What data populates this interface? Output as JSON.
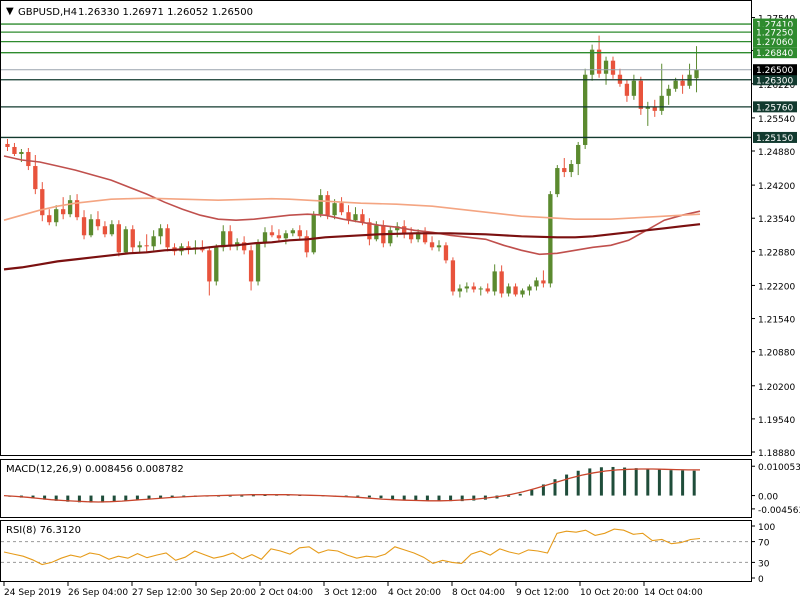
{
  "header": {
    "symbol": "GBPUSD,H4",
    "ohlc": "1.26330 1.26971 1.26052 1.26500"
  },
  "colors": {
    "bull": "#5b8a2f",
    "bear": "#e8533c",
    "ma_fast": "#c0504d",
    "ma_mid": "#f4a582",
    "ma_slow": "#7b1010",
    "green_level": "#2e8b2e",
    "dark_level": "#123a2f",
    "price_line": "#9aa3ad",
    "macd_hist": "#1f4d3a",
    "signal": "#c8452c",
    "rsi": "#e69b1a"
  },
  "chart_data": [
    {
      "type": "candlestick",
      "name": "GBPUSD,H4",
      "ylim": [
        1.1888,
        1.2781
      ],
      "y_ticks": [
        "1.27540",
        "1.26884",
        "1.26220",
        "1.25540",
        "1.24880",
        "1.24200",
        "1.23540",
        "1.22880",
        "1.22200",
        "1.21540",
        "1.20880",
        "1.20200",
        "1.19540",
        "1.18880"
      ],
      "x_ticks": [
        "24 Sep 2019",
        "26 Sep 04:00",
        "27 Sep 12:00",
        "30 Sep 20:00",
        "2 Oct 04:00",
        "3 Oct 12:00",
        "4 Oct 20:00",
        "8 Oct 04:00",
        "9 Oct 12:00",
        "10 Oct 20:00",
        "14 Oct 04:00"
      ],
      "levels_green": [
        "1.27410",
        "1.27250",
        "1.27060",
        "1.26840"
      ],
      "levels_dark": [
        "1.26300",
        "1.25760",
        "1.25150"
      ],
      "current_price": "1.26500",
      "candles": [
        [
          1.2502,
          1.2512,
          1.2488,
          1.2496
        ],
        [
          1.2496,
          1.2504,
          1.2478,
          1.2482
        ],
        [
          1.2482,
          1.2492,
          1.2466,
          1.2486
        ],
        [
          1.2486,
          1.2494,
          1.245,
          1.2458
        ],
        [
          1.2458,
          1.248,
          1.2402,
          1.2412
        ],
        [
          1.2412,
          1.2426,
          1.2348,
          1.236
        ],
        [
          1.236,
          1.2372,
          1.234,
          1.2346
        ],
        [
          1.2346,
          1.238,
          1.2338,
          1.2372
        ],
        [
          1.2372,
          1.2396,
          1.2352,
          1.2362
        ],
        [
          1.2362,
          1.24,
          1.2356,
          1.239
        ],
        [
          1.239,
          1.2402,
          1.235,
          1.2356
        ],
        [
          1.2356,
          1.237,
          1.2312,
          1.232
        ],
        [
          1.232,
          1.2362,
          1.2316,
          1.2352
        ],
        [
          1.2352,
          1.2368,
          1.233,
          1.2338
        ],
        [
          1.2338,
          1.2348,
          1.2316,
          1.2322
        ],
        [
          1.2322,
          1.235,
          1.2318,
          1.2342
        ],
        [
          1.2342,
          1.235,
          1.2278,
          1.2286
        ],
        [
          1.2286,
          1.2338,
          1.2282,
          1.2332
        ],
        [
          1.2332,
          1.234,
          1.2286,
          1.2296
        ],
        [
          1.2296,
          1.2308,
          1.2284,
          1.23
        ],
        [
          1.23,
          1.2322,
          1.2286,
          1.2298
        ],
        [
          1.2298,
          1.233,
          1.229,
          1.2318
        ],
        [
          1.2318,
          1.2342,
          1.2302,
          1.2334
        ],
        [
          1.2334,
          1.2342,
          1.2288,
          1.2296
        ],
        [
          1.2296,
          1.2304,
          1.228,
          1.2288
        ],
        [
          1.2288,
          1.2304,
          1.228,
          1.2298
        ],
        [
          1.2298,
          1.2308,
          1.2282,
          1.2292
        ],
        [
          1.2292,
          1.231,
          1.2282,
          1.2296
        ],
        [
          1.2296,
          1.231,
          1.2286,
          1.229
        ],
        [
          1.229,
          1.2298,
          1.22,
          1.2228
        ],
        [
          1.2228,
          1.2302,
          1.222,
          1.2296
        ],
        [
          1.2296,
          1.234,
          1.2288,
          1.2328
        ],
        [
          1.2328,
          1.234,
          1.229,
          1.2298
        ],
        [
          1.2298,
          1.2314,
          1.229,
          1.2306
        ],
        [
          1.2306,
          1.2318,
          1.2282,
          1.229
        ],
        [
          1.229,
          1.23,
          1.221,
          1.2228
        ],
        [
          1.2228,
          1.2312,
          1.222,
          1.2304
        ],
        [
          1.2304,
          1.2336,
          1.2296,
          1.2326
        ],
        [
          1.2326,
          1.234,
          1.2316,
          1.232
        ],
        [
          1.232,
          1.2332,
          1.2306,
          1.2314
        ],
        [
          1.2314,
          1.233,
          1.2302,
          1.2324
        ],
        [
          1.2324,
          1.2334,
          1.2318,
          1.233
        ],
        [
          1.233,
          1.234,
          1.2312,
          1.2318
        ],
        [
          1.2318,
          1.233,
          1.2276,
          1.2286
        ],
        [
          1.2286,
          1.2368,
          1.2282,
          1.2362
        ],
        [
          1.2362,
          1.2412,
          1.2356,
          1.24
        ],
        [
          1.24,
          1.2408,
          1.2352,
          1.236
        ],
        [
          1.236,
          1.2392,
          1.2352,
          1.2384
        ],
        [
          1.2384,
          1.2396,
          1.236,
          1.2366
        ],
        [
          1.2366,
          1.238,
          1.2342,
          1.235
        ],
        [
          1.235,
          1.2376,
          1.2346,
          1.2362
        ],
        [
          1.2362,
          1.2372,
          1.234,
          1.2346
        ],
        [
          1.2346,
          1.2354,
          1.23,
          1.2312
        ],
        [
          1.2312,
          1.2348,
          1.2308,
          1.234
        ],
        [
          1.234,
          1.235,
          1.2296,
          1.2304
        ],
        [
          1.2304,
          1.2338,
          1.2298,
          1.233
        ],
        [
          1.233,
          1.2346,
          1.2316,
          1.2338
        ],
        [
          1.2338,
          1.235,
          1.2314,
          1.2324
        ],
        [
          1.2324,
          1.2336,
          1.2304,
          1.2312
        ],
        [
          1.2312,
          1.2332,
          1.2306,
          1.2326
        ],
        [
          1.2326,
          1.2336,
          1.2302,
          1.2306
        ],
        [
          1.2306,
          1.2318,
          1.229,
          1.2296
        ],
        [
          1.2296,
          1.231,
          1.2288,
          1.23
        ],
        [
          1.23,
          1.2306,
          1.2264,
          1.227
        ],
        [
          1.227,
          1.2276,
          1.22,
          1.2208
        ],
        [
          1.2208,
          1.2222,
          1.2196,
          1.2214
        ],
        [
          1.2214,
          1.2226,
          1.2206,
          1.2218
        ],
        [
          1.2218,
          1.2226,
          1.2206,
          1.2212
        ],
        [
          1.2212,
          1.2218,
          1.22,
          1.2214
        ],
        [
          1.2214,
          1.2224,
          1.2204,
          1.2208
        ],
        [
          1.2208,
          1.2262,
          1.22,
          1.2248
        ],
        [
          1.2248,
          1.226,
          1.2196,
          1.2204
        ],
        [
          1.2204,
          1.2224,
          1.2198,
          1.2218
        ],
        [
          1.2218,
          1.2224,
          1.2198,
          1.2202
        ],
        [
          1.2202,
          1.2214,
          1.2196,
          1.221
        ],
        [
          1.221,
          1.2222,
          1.22,
          1.2218
        ],
        [
          1.2218,
          1.2236,
          1.221,
          1.223
        ],
        [
          1.223,
          1.225,
          1.2216,
          1.2224
        ],
        [
          1.2224,
          1.2408,
          1.2216,
          1.2402
        ],
        [
          1.2402,
          1.246,
          1.2396,
          1.2454
        ],
        [
          1.2454,
          1.2474,
          1.2436,
          1.2446
        ],
        [
          1.2446,
          1.247,
          1.2436,
          1.2462
        ],
        [
          1.2462,
          1.2506,
          1.244,
          1.25
        ],
        [
          1.25,
          1.2652,
          1.2492,
          1.264
        ],
        [
          1.264,
          1.27,
          1.2628,
          1.269
        ],
        [
          1.269,
          1.2718,
          1.2634,
          1.2642
        ],
        [
          1.2642,
          1.2676,
          1.262,
          1.2668
        ],
        [
          1.2668,
          1.2676,
          1.2632,
          1.264
        ],
        [
          1.264,
          1.2652,
          1.2616,
          1.2622
        ],
        [
          1.2622,
          1.263,
          1.2586,
          1.2598
        ],
        [
          1.2598,
          1.264,
          1.259,
          1.2628
        ],
        [
          1.2628,
          1.2636,
          1.256,
          1.2572
        ],
        [
          1.2572,
          1.2586,
          1.2538,
          1.2576
        ],
        [
          1.2576,
          1.259,
          1.2556,
          1.2568
        ],
        [
          1.2568,
          1.2662,
          1.256,
          1.2598
        ],
        [
          1.2598,
          1.262,
          1.258,
          1.2612
        ],
        [
          1.2612,
          1.2634,
          1.2606,
          1.2628
        ],
        [
          1.2628,
          1.264,
          1.2602,
          1.2618
        ],
        [
          1.2618,
          1.2662,
          1.2612,
          1.264
        ],
        [
          1.2633,
          1.2697,
          1.2605,
          1.265
        ]
      ],
      "moving_averages": [
        {
          "values": [
            1.2478,
            1.247,
            1.2466,
            1.2458,
            1.245,
            1.244,
            1.243,
            1.2416,
            1.2402,
            1.2386,
            1.2372,
            1.236,
            1.2352,
            1.235,
            1.2352,
            1.2356,
            1.236,
            1.2362,
            1.236,
            1.2352,
            1.2346,
            1.234,
            1.2336,
            1.233,
            1.2326,
            1.232,
            1.2316,
            1.2312,
            1.23,
            1.229,
            1.2282,
            1.2284,
            1.229,
            1.2296,
            1.23,
            1.231,
            1.233,
            1.235,
            1.236,
            1.2368
          ]
        },
        {
          "values": [
            1.235,
            1.236,
            1.237,
            1.2378,
            1.2384,
            1.2388,
            1.2392,
            1.2393,
            1.2394,
            1.2393,
            1.2392,
            1.2391,
            1.239,
            1.2391,
            1.2392,
            1.2393,
            1.2392,
            1.239,
            1.2388,
            1.2386,
            1.2384,
            1.2383,
            1.2382,
            1.238,
            1.2378,
            1.2374,
            1.237,
            1.2366,
            1.2362,
            1.2358,
            1.2356,
            1.2354,
            1.2352,
            1.2352,
            1.2352,
            1.2354,
            1.2356,
            1.2358,
            1.236,
            1.2362
          ]
        },
        {
          "values": [
            1.2252,
            1.2256,
            1.2262,
            1.2268,
            1.2272,
            1.2276,
            1.228,
            1.2284,
            1.2286,
            1.229,
            1.2292,
            1.2294,
            1.2298,
            1.23,
            1.2304,
            1.2306,
            1.231,
            1.2312,
            1.2316,
            1.2318,
            1.232,
            1.2322,
            1.2323,
            1.2324,
            1.2324,
            1.2324,
            1.2323,
            1.2322,
            1.232,
            1.2318,
            1.2317,
            1.2316,
            1.2316,
            1.2318,
            1.2322,
            1.2326,
            1.233,
            1.2334,
            1.2338,
            1.2342
          ]
        }
      ]
    },
    {
      "type": "bar",
      "name": "MACD(12,26,9)",
      "legend": "MACD(12,26,9) 0.008456 0.008782",
      "ylim": [
        -0.007,
        0.0115
      ],
      "y_ticks": [
        "0.010053",
        "0.00",
        "-0.004563"
      ],
      "histogram": [
        -0.0004,
        -0.0007,
        -0.001,
        -0.0014,
        -0.0018,
        -0.0021,
        -0.0023,
        -0.0024,
        -0.0024,
        -0.0022,
        -0.0019,
        -0.0016,
        -0.0013,
        -0.001,
        -0.0008,
        -0.0006,
        -0.0004,
        -0.0003,
        -0.0002,
        -0.0001,
        0.0,
        0.0001,
        0.0002,
        0.0003,
        0.0003,
        0.0002,
        0.0002,
        0.0001,
        0.0,
        -0.0001,
        -0.0003,
        -0.0006,
        -0.0009,
        -0.0012,
        -0.0015,
        -0.0017,
        -0.0018,
        -0.0019,
        -0.0019,
        -0.0019,
        -0.0017,
        -0.0014,
        -0.001,
        -0.0004,
        0.0006,
        0.002,
        0.0038,
        0.0056,
        0.0072,
        0.0085,
        0.0093,
        0.0097,
        0.0098,
        0.0096,
        0.0094,
        0.0091,
        0.0089,
        0.0087,
        0.0086,
        0.0085
      ],
      "signal": [
        0.0,
        -0.0003,
        -0.0006,
        -0.001,
        -0.0014,
        -0.0017,
        -0.0019,
        -0.0021,
        -0.0022,
        -0.0021,
        -0.0019,
        -0.0016,
        -0.0013,
        -0.001,
        -0.0007,
        -0.0005,
        -0.0003,
        -0.0001,
        0.0,
        0.0001,
        0.0002,
        0.0003,
        0.0003,
        0.0003,
        0.0003,
        0.0002,
        0.0001,
        0.0,
        -0.0002,
        -0.0004,
        -0.0006,
        -0.0009,
        -0.0012,
        -0.0014,
        -0.0016,
        -0.0017,
        -0.0018,
        -0.0018,
        -0.0017,
        -0.0015,
        -0.0012,
        -0.0008,
        -0.0003,
        0.0004,
        0.0013,
        0.0024,
        0.0036,
        0.0048,
        0.006,
        0.007,
        0.0078,
        0.0084,
        0.0088,
        0.009,
        0.0091,
        0.0091,
        0.009,
        0.0089,
        0.0088,
        0.0088
      ]
    },
    {
      "type": "line",
      "name": "RSI(8)",
      "legend": "RSI(8) 76.3120",
      "ylim": [
        0,
        100
      ],
      "y_ticks": [
        "100",
        "70",
        "30",
        "0"
      ],
      "levels": [
        70,
        30
      ],
      "values": [
        50,
        46,
        42,
        35,
        26,
        30,
        38,
        44,
        40,
        48,
        45,
        36,
        42,
        38,
        47,
        39,
        44,
        48,
        34,
        40,
        52,
        45,
        38,
        42,
        48,
        37,
        45,
        36,
        56,
        52,
        46,
        58,
        60,
        48,
        54,
        52,
        44,
        38,
        42,
        40,
        46,
        60,
        54,
        48,
        40,
        28,
        34,
        30,
        28,
        46,
        52,
        44,
        56,
        50,
        46,
        54,
        52,
        48,
        86,
        90,
        88,
        92,
        82,
        86,
        94,
        92,
        84,
        86,
        72,
        74,
        66,
        68,
        74,
        76
      ]
    }
  ]
}
